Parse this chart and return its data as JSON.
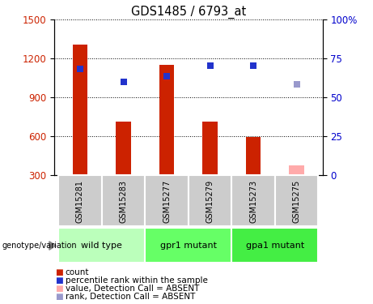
{
  "title": "GDS1485 / 6793_at",
  "samples": [
    "GSM15281",
    "GSM15283",
    "GSM15277",
    "GSM15279",
    "GSM15273",
    "GSM15275"
  ],
  "bar_values": [
    1310,
    710,
    1150,
    710,
    595,
    375
  ],
  "bar_colors": [
    "#cc2200",
    "#cc2200",
    "#cc2200",
    "#cc2200",
    "#cc2200",
    "#ffaaaa"
  ],
  "dot_values": [
    1120,
    1020,
    1060,
    1145,
    1145,
    1000
  ],
  "dot_colors": [
    "#2233cc",
    "#2233cc",
    "#2233cc",
    "#2233cc",
    "#2233cc",
    "#9999cc"
  ],
  "ylim_left": [
    300,
    1500
  ],
  "ylim_right": [
    0,
    100
  ],
  "yticks_left": [
    300,
    600,
    900,
    1200,
    1500
  ],
  "yticks_right": [
    0,
    25,
    50,
    75,
    100
  ],
  "group_spans": [
    [
      0,
      1,
      "wild type",
      "#bbffbb"
    ],
    [
      2,
      3,
      "gpr1 mutant",
      "#66ff66"
    ],
    [
      4,
      5,
      "gpa1 mutant",
      "#44ee44"
    ]
  ],
  "legend_items": [
    {
      "label": "count",
      "color": "#cc2200"
    },
    {
      "label": "percentile rank within the sample",
      "color": "#2233cc"
    },
    {
      "label": "value, Detection Call = ABSENT",
      "color": "#ffaaaa"
    },
    {
      "label": "rank, Detection Call = ABSENT",
      "color": "#9999cc"
    }
  ],
  "ylabel_left_color": "#cc2200",
  "ylabel_right_color": "#0000cc",
  "bar_width": 0.35,
  "dot_size": 40,
  "sample_box_color": "#cccccc",
  "genotype_label": "genotype/variation"
}
